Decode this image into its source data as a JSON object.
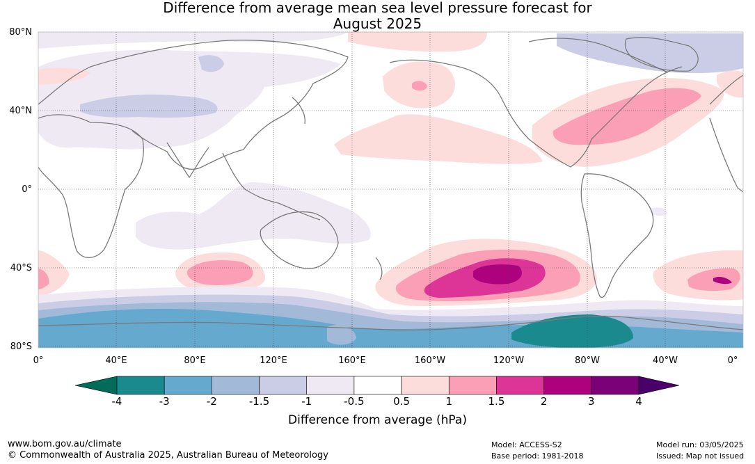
{
  "title_line1": "Difference from average mean sea level pressure forecast for",
  "title_line2": "August 2025",
  "lat_labels": [
    "80°N",
    "40°N",
    "0°",
    "40°S",
    "80°S"
  ],
  "lon_labels": [
    "0°",
    "40°E",
    "80°E",
    "120°E",
    "160°E",
    "160°W",
    "120°W",
    "80°W",
    "40°W",
    "0°"
  ],
  "colorbar": {
    "title": "Difference from average (hPa)",
    "ticks": [
      "-4",
      "-3",
      "-2",
      "-1.5",
      "-1",
      "-0.5",
      "0.5",
      "1",
      "1.5",
      "2",
      "3",
      "4"
    ],
    "colors": [
      "#1a8a8f",
      "#66a9cf",
      "#a3b9d8",
      "#cacde5",
      "#efe9f3",
      "#ffffff",
      "#fddcdc",
      "#fa9fb5",
      "#dd3497",
      "#ae017e",
      "#7a0177"
    ],
    "under_color": "#016c59",
    "over_color": "#49006a"
  },
  "footer": {
    "website": "www.bom.gov.au/climate",
    "copyright": "© Commonwealth of Australia 2025, Australian Bureau of Meteorology",
    "model": "Model: ACCESS-S2",
    "base_period": "Base period: 1981-2018",
    "model_run": "Model run: 03/05/2025",
    "issued": "Issued: Map not issued"
  }
}
